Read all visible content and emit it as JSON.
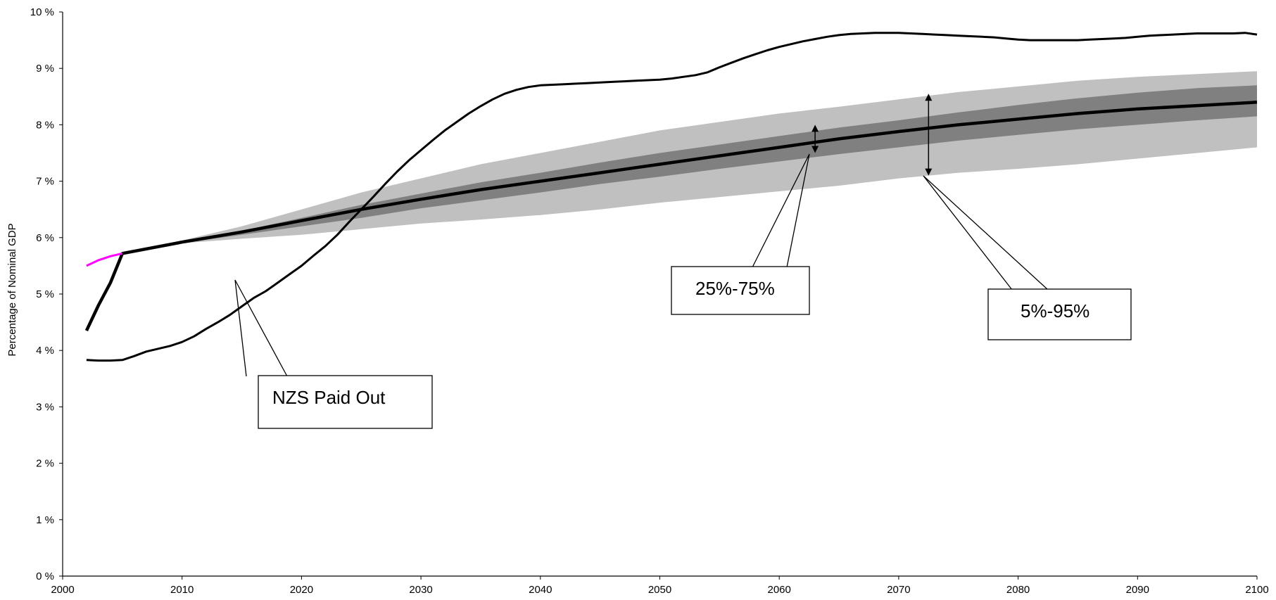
{
  "chart_data": {
    "type": "area",
    "title": "",
    "xlabel": "",
    "ylabel": "Percentage of Nominal GDP",
    "xlim": [
      2000,
      2100
    ],
    "ylim": [
      0,
      10
    ],
    "x_ticks": [
      2000,
      2010,
      2020,
      2030,
      2040,
      2050,
      2060,
      2070,
      2080,
      2090,
      2100
    ],
    "x_tick_labels": [
      "2000",
      "2010",
      "2020",
      "2030",
      "2040",
      "2050",
      "2060",
      "2070",
      "2080",
      "2090",
      "2100"
    ],
    "y_ticks": [
      0,
      1,
      2,
      3,
      4,
      5,
      6,
      7,
      8,
      9,
      10
    ],
    "y_tick_labels": [
      "0 %",
      "1 %",
      "2 %",
      "3 %",
      "4 %",
      "5 %",
      "6 %",
      "7 %",
      "8 %",
      "9 %",
      "10 %"
    ],
    "grid": false,
    "colors": {
      "band_5_95": "#c0c0c0",
      "band_25_75": "#808080",
      "median": "#000000",
      "nzs_paid_out": "#000000",
      "history": "#ff00ff"
    },
    "bands": [
      {
        "label": "5%-95%",
        "x": [
          2005,
          2010,
          2015,
          2020,
          2025,
          2030,
          2035,
          2040,
          2045,
          2050,
          2055,
          2060,
          2065,
          2070,
          2075,
          2080,
          2085,
          2090,
          2095,
          2100
        ],
        "lower": [
          5.72,
          5.9,
          5.98,
          6.05,
          6.15,
          6.25,
          6.32,
          6.4,
          6.5,
          6.62,
          6.72,
          6.82,
          6.92,
          7.05,
          7.15,
          7.22,
          7.3,
          7.4,
          7.5,
          7.6
        ],
        "upper": [
          5.72,
          5.95,
          6.2,
          6.5,
          6.8,
          7.05,
          7.3,
          7.5,
          7.7,
          7.9,
          8.05,
          8.2,
          8.32,
          8.45,
          8.58,
          8.68,
          8.78,
          8.85,
          8.9,
          8.95
        ]
      },
      {
        "label": "25%-75%",
        "x": [
          2005,
          2010,
          2015,
          2020,
          2025,
          2030,
          2035,
          2040,
          2045,
          2050,
          2055,
          2060,
          2065,
          2070,
          2075,
          2080,
          2085,
          2090,
          2095,
          2100
        ],
        "lower": [
          5.72,
          5.9,
          6.05,
          6.2,
          6.35,
          6.52,
          6.66,
          6.8,
          6.95,
          7.08,
          7.22,
          7.35,
          7.48,
          7.6,
          7.72,
          7.82,
          7.92,
          8.0,
          8.08,
          8.15
        ],
        "upper": [
          5.72,
          5.93,
          6.12,
          6.35,
          6.58,
          6.78,
          6.98,
          7.15,
          7.33,
          7.5,
          7.65,
          7.8,
          7.95,
          8.08,
          8.22,
          8.35,
          8.47,
          8.57,
          8.65,
          8.7
        ]
      }
    ],
    "series": [
      {
        "name": "NZS Paid Out",
        "x": [
          2002,
          2003,
          2004,
          2005,
          2006,
          2007,
          2008,
          2009,
          2010,
          2011,
          2012,
          2013,
          2014,
          2015,
          2016,
          2017,
          2018,
          2019,
          2020,
          2021,
          2022,
          2023,
          2024,
          2025,
          2026,
          2027,
          2028,
          2029,
          2030,
          2031,
          2032,
          2033,
          2034,
          2035,
          2036,
          2037,
          2038,
          2039,
          2040,
          2041,
          2042,
          2043,
          2044,
          2045,
          2046,
          2047,
          2048,
          2049,
          2050,
          2051,
          2052,
          2053,
          2054,
          2055,
          2056,
          2057,
          2058,
          2059,
          2060,
          2061,
          2062,
          2063,
          2064,
          2065,
          2066,
          2067,
          2068,
          2069,
          2070,
          2071,
          2072,
          2073,
          2074,
          2075,
          2076,
          2077,
          2078,
          2079,
          2080,
          2081,
          2082,
          2083,
          2084,
          2085,
          2086,
          2087,
          2088,
          2089,
          2090,
          2091,
          2092,
          2093,
          2094,
          2095,
          2096,
          2097,
          2098,
          2099,
          2100
        ],
        "values": [
          3.83,
          3.82,
          3.82,
          3.83,
          3.9,
          3.98,
          4.03,
          4.08,
          4.15,
          4.25,
          4.38,
          4.5,
          4.63,
          4.78,
          4.93,
          5.05,
          5.2,
          5.35,
          5.5,
          5.68,
          5.85,
          6.05,
          6.28,
          6.5,
          6.72,
          6.95,
          7.17,
          7.37,
          7.55,
          7.73,
          7.9,
          8.05,
          8.2,
          8.33,
          8.45,
          8.55,
          8.62,
          8.67,
          8.7,
          8.71,
          8.72,
          8.73,
          8.74,
          8.75,
          8.76,
          8.77,
          8.78,
          8.79,
          8.8,
          8.82,
          8.85,
          8.88,
          8.93,
          9.02,
          9.1,
          9.18,
          9.25,
          9.32,
          9.38,
          9.43,
          9.48,
          9.52,
          9.56,
          9.59,
          9.61,
          9.62,
          9.63,
          9.63,
          9.63,
          9.62,
          9.61,
          9.6,
          9.59,
          9.58,
          9.57,
          9.56,
          9.55,
          9.53,
          9.51,
          9.5,
          9.5,
          9.5,
          9.5,
          9.5,
          9.51,
          9.52,
          9.53,
          9.54,
          9.56,
          9.58,
          9.59,
          9.6,
          9.61,
          9.62,
          9.62,
          9.62,
          9.62,
          9.63,
          9.6
        ]
      },
      {
        "name": "",
        "x": [
          2002,
          2003,
          2004,
          2005,
          2010,
          2015,
          2020,
          2025,
          2030,
          2035,
          2040,
          2045,
          2050,
          2055,
          2060,
          2065,
          2070,
          2075,
          2080,
          2085,
          2090,
          2095,
          2100
        ],
        "values": [
          4.35,
          4.8,
          5.2,
          5.72,
          5.92,
          6.1,
          6.3,
          6.5,
          6.68,
          6.85,
          7.0,
          7.15,
          7.3,
          7.45,
          7.6,
          7.75,
          7.88,
          8.0,
          8.1,
          8.2,
          8.28,
          8.34,
          8.4
        ]
      },
      {
        "name": "",
        "x": [
          2002,
          2003,
          2004,
          2005
        ],
        "values": [
          5.5,
          5.6,
          5.67,
          5.72
        ]
      }
    ],
    "annotations": [
      {
        "text": "NZS Paid Out",
        "pointer_x": 2018,
        "pointer_y": 5.2
      },
      {
        "text": "25%-75%",
        "range_x": 2063,
        "range_y": [
          7.5,
          8.0
        ]
      },
      {
        "text": "5%-95%",
        "range_x": 2072.5,
        "range_y": [
          7.1,
          8.55
        ]
      }
    ]
  }
}
